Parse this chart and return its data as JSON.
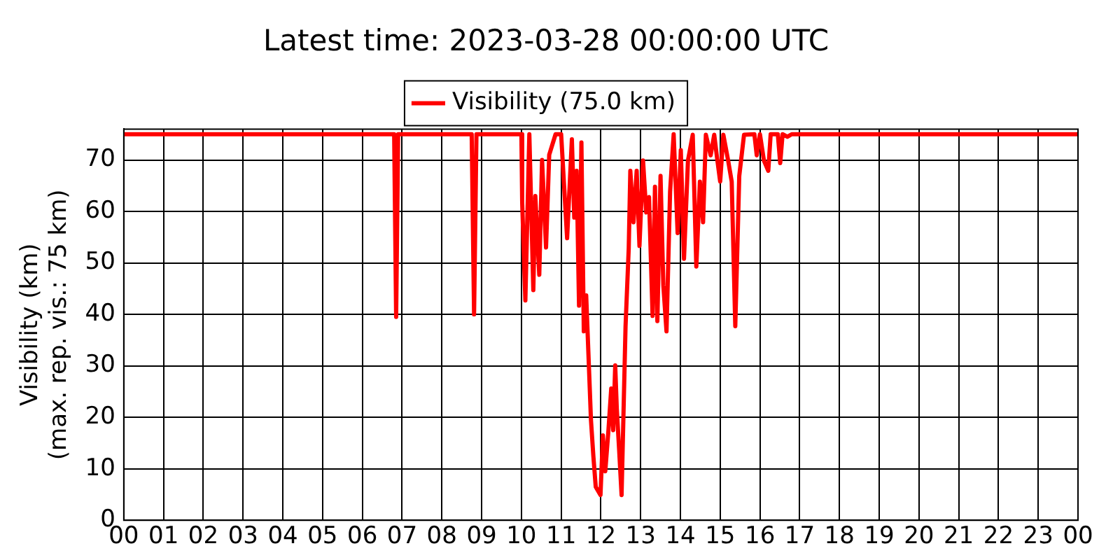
{
  "chart_data": {
    "type": "line",
    "title": "Latest time: 2023-03-28 00:00:00 UTC",
    "ylabel": "Visibility (km)\n(max. rep. vis.: 75 km)",
    "xlim": [
      0,
      24
    ],
    "xticks": [
      {
        "value": 0,
        "label": "00"
      },
      {
        "value": 1,
        "label": "01"
      },
      {
        "value": 2,
        "label": "02"
      },
      {
        "value": 3,
        "label": "03"
      },
      {
        "value": 4,
        "label": "04"
      },
      {
        "value": 5,
        "label": "05"
      },
      {
        "value": 6,
        "label": "06"
      },
      {
        "value": 7,
        "label": "07"
      },
      {
        "value": 8,
        "label": "08"
      },
      {
        "value": 9,
        "label": "09"
      },
      {
        "value": 10,
        "label": "10"
      },
      {
        "value": 11,
        "label": "11"
      },
      {
        "value": 12,
        "label": "12"
      },
      {
        "value": 13,
        "label": "13"
      },
      {
        "value": 14,
        "label": "14"
      },
      {
        "value": 15,
        "label": "15"
      },
      {
        "value": 16,
        "label": "16"
      },
      {
        "value": 17,
        "label": "17"
      },
      {
        "value": 18,
        "label": "18"
      },
      {
        "value": 19,
        "label": "19"
      },
      {
        "value": 20,
        "label": "20"
      },
      {
        "value": 21,
        "label": "21"
      },
      {
        "value": 22,
        "label": "22"
      },
      {
        "value": 23,
        "label": "23"
      },
      {
        "value": 24,
        "label": "00"
      }
    ],
    "ylim": [
      0,
      76
    ],
    "yticks": [
      0,
      10,
      20,
      30,
      40,
      50,
      60,
      70
    ],
    "grid": true,
    "legend": "top",
    "marker": "none",
    "line_style": "solid",
    "series": [
      {
        "name": "Visibility (75.0 km)",
        "color": "#ff0000",
        "x": [
          0,
          6.8,
          6.85,
          6.9,
          8.75,
          8.81,
          8.87,
          10,
          10.02,
          10.1,
          10.2,
          10.3,
          10.35,
          10.45,
          10.52,
          10.62,
          10.7,
          10.86,
          11.0,
          11.15,
          11.27,
          11.33,
          11.39,
          11.45,
          11.51,
          11.57,
          11.63,
          11.69,
          11.75,
          11.81,
          11.87,
          11.99,
          12.05,
          12.11,
          12.19,
          12.26,
          12.31,
          12.36,
          12.4,
          12.46,
          12.52,
          12.62,
          12.7,
          12.74,
          12.82,
          12.9,
          12.97,
          13.06,
          13.14,
          13.21,
          13.3,
          13.36,
          13.42,
          13.5,
          13.57,
          13.65,
          13.74,
          13.83,
          13.93,
          14.01,
          14.09,
          14.19,
          14.31,
          14.4,
          14.49,
          14.57,
          14.64,
          14.76,
          14.85,
          14.93,
          15.0,
          15.08,
          15.2,
          15.29,
          15.38,
          15.48,
          15.6,
          15.86,
          15.92,
          16.0,
          16.1,
          16.21,
          16.27,
          16.45,
          16.51,
          16.57,
          16.69,
          16.8,
          24
        ],
        "values": [
          75,
          75,
          39.5,
          75,
          75,
          40,
          75,
          75,
          61.8,
          42.7,
          75,
          44.7,
          63,
          47.7,
          70,
          53,
          71,
          75,
          75,
          54.8,
          74,
          58.8,
          67.9,
          41.7,
          73.4,
          36.7,
          43.7,
          31.6,
          19.5,
          12.5,
          6.5,
          4.9,
          16.5,
          9.5,
          17.5,
          25.6,
          17.5,
          30.1,
          21.6,
          13.5,
          4.9,
          37.7,
          52.8,
          67.9,
          57.9,
          67.9,
          53.3,
          69.9,
          59.8,
          62.8,
          39.7,
          64.8,
          38.7,
          66.9,
          45.7,
          36.7,
          63.8,
          75,
          55.8,
          71.9,
          50.8,
          69.9,
          74.9,
          49.3,
          65.8,
          57.9,
          74.9,
          70.9,
          74.9,
          69.9,
          65.8,
          74.9,
          69.9,
          65.8,
          37.7,
          66.9,
          74.9,
          75,
          70.9,
          75,
          69.9,
          67.9,
          75,
          75,
          69.4,
          75,
          74.5,
          75,
          75
        ]
      }
    ]
  }
}
